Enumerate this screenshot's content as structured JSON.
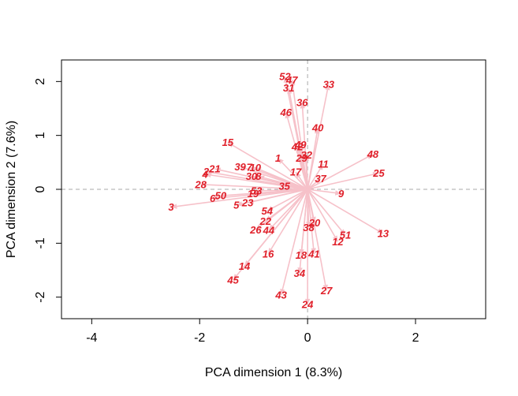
{
  "chart_data": {
    "type": "biplot",
    "xlabel": "PCA dimension 1 (8.3%)",
    "ylabel": "PCA dimension 2 (7.6%)",
    "xlim": [
      -4.56,
      3.3
    ],
    "ylim": [
      -2.4,
      2.4
    ],
    "xticks": [
      -4,
      -2,
      0,
      2
    ],
    "yticks": [
      -2,
      -1,
      0,
      1,
      2
    ],
    "arrow_color": "#f6c1c9",
    "label_color": "#e0202a",
    "reference_lines": {
      "x": 0,
      "y": 0,
      "color": "#aaaaaa",
      "style": "dashed"
    },
    "points": [
      {
        "label": "1",
        "x": -0.55,
        "y": 0.58
      },
      {
        "label": "2",
        "x": -1.88,
        "y": 0.33
      },
      {
        "label": "3",
        "x": -2.53,
        "y": -0.33
      },
      {
        "label": "4",
        "x": -1.9,
        "y": 0.28
      },
      {
        "label": "5",
        "x": -1.32,
        "y": -0.29
      },
      {
        "label": "6",
        "x": -1.76,
        "y": -0.17
      },
      {
        "label": "7",
        "x": -1.08,
        "y": 0.41
      },
      {
        "label": "8",
        "x": -0.91,
        "y": 0.24
      },
      {
        "label": "9",
        "x": 0.62,
        "y": -0.08
      },
      {
        "label": "10",
        "x": -0.97,
        "y": 0.4
      },
      {
        "label": "11",
        "x": 0.29,
        "y": 0.47
      },
      {
        "label": "12",
        "x": 0.56,
        "y": -0.97
      },
      {
        "label": "13",
        "x": 1.4,
        "y": -0.82
      },
      {
        "label": "14",
        "x": -1.17,
        "y": -1.43
      },
      {
        "label": "15",
        "x": -1.48,
        "y": 0.87
      },
      {
        "label": "16",
        "x": -0.73,
        "y": -1.2
      },
      {
        "label": "17",
        "x": -0.22,
        "y": 0.32
      },
      {
        "label": "18",
        "x": -0.12,
        "y": -1.22
      },
      {
        "label": "19",
        "x": -1.01,
        "y": -0.08
      },
      {
        "label": "20",
        "x": 0.13,
        "y": -0.62
      },
      {
        "label": "21",
        "x": -1.72,
        "y": 0.38
      },
      {
        "label": "22",
        "x": -0.78,
        "y": -0.59
      },
      {
        "label": "23",
        "x": -1.11,
        "y": -0.25
      },
      {
        "label": "24",
        "x": 0.0,
        "y": -2.14
      },
      {
        "label": "25",
        "x": 1.32,
        "y": 0.3
      },
      {
        "label": "26",
        "x": -0.96,
        "y": -0.75
      },
      {
        "label": "27",
        "x": 0.35,
        "y": -1.88
      },
      {
        "label": "28",
        "x": -1.98,
        "y": 0.09
      },
      {
        "label": "29",
        "x": -0.11,
        "y": 0.58
      },
      {
        "label": "30",
        "x": -1.04,
        "y": 0.24
      },
      {
        "label": "31",
        "x": -0.35,
        "y": 1.88
      },
      {
        "label": "32",
        "x": -0.02,
        "y": 0.64
      },
      {
        "label": "33",
        "x": 0.39,
        "y": 1.95
      },
      {
        "label": "34",
        "x": -0.15,
        "y": -1.56
      },
      {
        "label": "35",
        "x": -0.43,
        "y": 0.06
      },
      {
        "label": "36",
        "x": -0.1,
        "y": 1.61
      },
      {
        "label": "37",
        "x": 0.24,
        "y": 0.2
      },
      {
        "label": "38",
        "x": 0.02,
        "y": -0.71
      },
      {
        "label": "39",
        "x": -1.25,
        "y": 0.42
      },
      {
        "label": "40",
        "x": 0.19,
        "y": 1.14
      },
      {
        "label": "41",
        "x": 0.12,
        "y": -1.2
      },
      {
        "label": "42",
        "x": -0.19,
        "y": 0.79
      },
      {
        "label": "43",
        "x": -0.49,
        "y": -1.96
      },
      {
        "label": "44",
        "x": -0.72,
        "y": -0.76
      },
      {
        "label": "45",
        "x": -1.38,
        "y": -1.68
      },
      {
        "label": "46",
        "x": -0.4,
        "y": 1.43
      },
      {
        "label": "47",
        "x": -0.29,
        "y": 2.03
      },
      {
        "label": "48",
        "x": 1.21,
        "y": 0.65
      },
      {
        "label": "49",
        "x": -0.13,
        "y": 0.83
      },
      {
        "label": "50",
        "x": -1.61,
        "y": -0.12
      },
      {
        "label": "51",
        "x": 0.7,
        "y": -0.85
      },
      {
        "label": "52",
        "x": -0.42,
        "y": 2.09
      },
      {
        "label": "53",
        "x": -0.95,
        "y": -0.03
      },
      {
        "label": "54",
        "x": -0.75,
        "y": -0.4
      }
    ]
  }
}
